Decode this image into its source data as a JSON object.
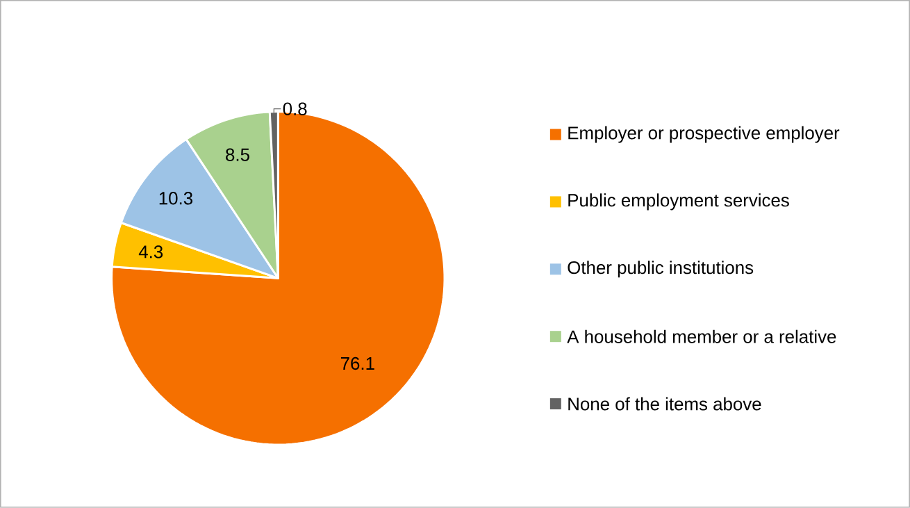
{
  "chart_data": {
    "type": "pie",
    "categories": [
      "Employer or prospective employer",
      "Public employment services",
      "Other public institutions",
      "A household member or a relative",
      "None of the items above"
    ],
    "values": [
      76.1,
      4.3,
      10.3,
      8.5,
      0.8
    ],
    "colors": [
      "#f57000",
      "#ffc000",
      "#9dc3e6",
      "#a9d18e",
      "#636363"
    ],
    "data_labels": true,
    "legend": "right"
  }
}
